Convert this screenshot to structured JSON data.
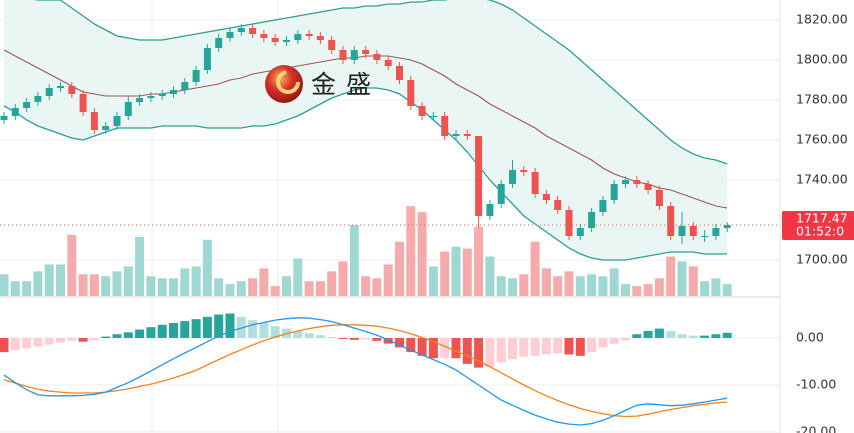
{
  "chart_data": [
    {
      "type": "candlestick",
      "ylim": [
        1682,
        1830
      ],
      "yticks": [
        {
          "value": 1820,
          "label": "1820.00"
        },
        {
          "value": 1800,
          "label": "1800.00"
        },
        {
          "value": 1780,
          "label": "1780.00"
        },
        {
          "value": 1760,
          "label": "1760.00"
        },
        {
          "value": 1740,
          "label": "1740.00"
        },
        {
          "value": 1700,
          "label": "1700.00"
        }
      ],
      "grid": true,
      "up_color": "#26a69a",
      "down_color": "#ef5350",
      "open": [
        1770,
        1772,
        1776,
        1779,
        1782,
        1786,
        1787,
        1783,
        1774,
        1765,
        1767,
        1772,
        1779,
        1781,
        1782,
        1783,
        1785,
        1789,
        1795,
        1806,
        1811,
        1814,
        1816,
        1813,
        1811,
        1809,
        1810,
        1813,
        1812,
        1810,
        1805,
        1800,
        1805,
        1803,
        1800,
        1797,
        1790,
        1777,
        1772,
        1772,
        1762,
        1763,
        1762,
        1722,
        1728,
        1738,
        1745,
        1744,
        1733,
        1730,
        1725,
        1712,
        1716,
        1724,
        1730,
        1738,
        1740,
        1738,
        1735,
        1727,
        1712,
        1717,
        1712,
        1712,
        1716
      ],
      "high": [
        1774,
        1778,
        1781,
        1784,
        1788,
        1789,
        1789,
        1785,
        1776,
        1769,
        1774,
        1782,
        1783,
        1784,
        1785,
        1787,
        1791,
        1797,
        1808,
        1813,
        1816,
        1818,
        1818,
        1815,
        1813,
        1812,
        1815,
        1815,
        1814,
        1812,
        1807,
        1807,
        1807,
        1805,
        1802,
        1799,
        1792,
        1779,
        1774,
        1774,
        1765,
        1765,
        1762,
        1730,
        1740,
        1750,
        1747,
        1746,
        1735,
        1732,
        1727,
        1718,
        1726,
        1732,
        1740,
        1742,
        1742,
        1740,
        1737,
        1729,
        1724,
        1719,
        1715,
        1718,
        1719
      ],
      "low": [
        1768,
        1770,
        1774,
        1777,
        1780,
        1784,
        1781,
        1772,
        1763,
        1763,
        1765,
        1770,
        1777,
        1779,
        1780,
        1781,
        1783,
        1787,
        1793,
        1804,
        1809,
        1812,
        1811,
        1809,
        1807,
        1807,
        1808,
        1810,
        1808,
        1803,
        1798,
        1798,
        1801,
        1798,
        1795,
        1788,
        1775,
        1770,
        1770,
        1760,
        1760,
        1760,
        1716,
        1720,
        1726,
        1736,
        1742,
        1731,
        1728,
        1723,
        1710,
        1710,
        1714,
        1722,
        1728,
        1736,
        1736,
        1733,
        1725,
        1710,
        1708,
        1710,
        1709,
        1710,
        1714
      ],
      "close": [
        1772,
        1776,
        1779,
        1782,
        1786,
        1787,
        1783,
        1774,
        1765,
        1767,
        1772,
        1779,
        1781,
        1782,
        1783,
        1785,
        1789,
        1795,
        1806,
        1811,
        1814,
        1816,
        1813,
        1811,
        1809,
        1810,
        1813,
        1812,
        1810,
        1805,
        1800,
        1805,
        1803,
        1800,
        1797,
        1790,
        1777,
        1772,
        1772,
        1762,
        1763,
        1762,
        1722,
        1728,
        1738,
        1745,
        1744,
        1733,
        1730,
        1725,
        1712,
        1716,
        1724,
        1730,
        1738,
        1740,
        1738,
        1735,
        1727,
        1712,
        1717,
        1712,
        1712,
        1716,
        1717.47
      ],
      "bollinger": {
        "upper": [
          1832,
          1832,
          1831,
          1830,
          1830,
          1830,
          1826,
          1822,
          1818,
          1815,
          1812,
          1811,
          1810,
          1810,
          1810,
          1811,
          1812,
          1813,
          1814,
          1815,
          1816,
          1817,
          1818,
          1819,
          1820,
          1821,
          1822,
          1823,
          1824,
          1825,
          1826,
          1826,
          1827,
          1827,
          1828,
          1828,
          1829,
          1829,
          1830,
          1830,
          1831,
          1831,
          1831,
          1830,
          1828,
          1825,
          1821,
          1817,
          1813,
          1809,
          1805,
          1800,
          1795,
          1790,
          1785,
          1780,
          1775,
          1770,
          1765,
          1760,
          1756,
          1753,
          1751,
          1750,
          1748
        ],
        "middle": [
          1805,
          1802,
          1799,
          1796,
          1793,
          1790,
          1787,
          1784,
          1783,
          1782,
          1782,
          1782,
          1782,
          1783,
          1783,
          1784,
          1785,
          1786,
          1787,
          1788,
          1790,
          1791,
          1793,
          1794,
          1795,
          1796,
          1797,
          1798,
          1799,
          1800,
          1801,
          1801,
          1802,
          1802,
          1802,
          1801,
          1800,
          1798,
          1795,
          1792,
          1788,
          1785,
          1782,
          1778,
          1775,
          1772,
          1769,
          1766,
          1762,
          1759,
          1756,
          1753,
          1750,
          1746,
          1743,
          1741,
          1739,
          1738,
          1736,
          1735,
          1733,
          1731,
          1729,
          1727,
          1726
        ],
        "lower": [
          1777,
          1774,
          1770,
          1767,
          1765,
          1763,
          1761,
          1760,
          1762,
          1764,
          1766,
          1766,
          1766,
          1766,
          1767,
          1767,
          1767,
          1767,
          1766,
          1766,
          1766,
          1766,
          1767,
          1767,
          1768,
          1770,
          1772,
          1775,
          1778,
          1781,
          1783,
          1785,
          1786,
          1786,
          1785,
          1783,
          1779,
          1775,
          1770,
          1765,
          1760,
          1754,
          1747,
          1740,
          1734,
          1728,
          1722,
          1718,
          1714,
          1710,
          1706,
          1703,
          1701,
          1700,
          1700,
          1700,
          1701,
          1702,
          1703,
          1704,
          1704,
          1704,
          1703,
          1703,
          1703
        ],
        "band_color": "#2e9e94",
        "middle_color": "#a0564c",
        "fill": "#e9f6f4"
      },
      "volume": {
        "ylim": [
          0,
          300
        ],
        "up_color": "#9fd8d2",
        "down_color": "#f5abab",
        "values": [
          22,
          15,
          15,
          25,
          32,
          32,
          62,
          22,
          22,
          20,
          25,
          30,
          60,
          20,
          18,
          18,
          28,
          30,
          57,
          18,
          12,
          15,
          18,
          28,
          10,
          20,
          38,
          15,
          15,
          25,
          35,
          72,
          20,
          18,
          32,
          55,
          91,
          85,
          30,
          45,
          50,
          48,
          70,
          40,
          20,
          18,
          22,
          55,
          28,
          20,
          25,
          20,
          22,
          20,
          28,
          12,
          10,
          12,
          18,
          40,
          35,
          30,
          15,
          18,
          12
        ]
      },
      "last_price": 1717.47,
      "countdown": "01:52:0",
      "watermark": "金盛"
    },
    {
      "type": "macd",
      "ylim": [
        -20.2,
        8.5
      ],
      "yticks": [
        {
          "value": 0,
          "label": "0.00"
        },
        {
          "value": -10,
          "label": "-10.00"
        },
        {
          "value": -20,
          "label": "-20.00"
        }
      ],
      "histogram": [
        -3,
        -2.6,
        -2.2,
        -1.8,
        -1.4,
        -1,
        -0.6,
        -0.8,
        -0.5,
        0.3,
        0.8,
        1.2,
        1.8,
        2.3,
        2.8,
        3.2,
        3.6,
        4,
        4.5,
        5,
        5.2,
        4.5,
        3.8,
        3.2,
        2.5,
        2,
        1.5,
        1,
        0.6,
        0.2,
        -0.2,
        -0.4,
        -0.3,
        -0.6,
        -1.2,
        -2,
        -3,
        -3.8,
        -4.3,
        -4.2,
        -4.3,
        -5.5,
        -6.3,
        -6.2,
        -5.2,
        -4.5,
        -4,
        -3.8,
        -3.5,
        -3.3,
        -3.5,
        -3.8,
        -3,
        -2,
        -1.2,
        -0.5,
        0.8,
        1.5,
        2,
        1.5,
        0.8,
        0.5,
        0.5,
        0.8,
        1.1
      ],
      "colors": {
        "up_strong": "#26a69a",
        "up_weak": "#b2dfdb",
        "down_strong": "#ef5350",
        "down_weak": "#ffcdd2"
      },
      "dif": {
        "color": "#2196f3",
        "values": [
          -7.9,
          -9.5,
          -11,
          -12.1,
          -12.3,
          -12.3,
          -12.3,
          -12.2,
          -12,
          -11.5,
          -10.5,
          -9.5,
          -8.3,
          -7,
          -5.7,
          -4.4,
          -3.2,
          -2,
          -0.8,
          0.4,
          1.4,
          2.1,
          2.8,
          3.3,
          3.8,
          4.1,
          4.3,
          4.2,
          3.9,
          3.5,
          2.8,
          2.1,
          1.4,
          0.6,
          -0.4,
          -1.5,
          -2.6,
          -3.6,
          -4.6,
          -5.6,
          -6.8,
          -8.4,
          -10,
          -11.6,
          -13.2,
          -14.3,
          -15.4,
          -16.4,
          -17.2,
          -17.9,
          -18.3,
          -18.5,
          -18.2,
          -17.5,
          -16.5,
          -15.4,
          -14.3,
          -14,
          -14.2,
          -14.4,
          -14.3,
          -14,
          -13.6,
          -13.2,
          -12.8
        ]
      },
      "dea": {
        "color": "#f5821f",
        "values": [
          -8.9,
          -9.6,
          -10.3,
          -10.9,
          -11.3,
          -11.5,
          -11.7,
          -11.7,
          -11.7,
          -11.5,
          -11.2,
          -10.8,
          -10.3,
          -9.8,
          -9.2,
          -8.5,
          -7.7,
          -6.9,
          -5.7,
          -4.6,
          -3.5,
          -2.5,
          -1.5,
          -0.6,
          0.2,
          0.9,
          1.5,
          2,
          2.4,
          2.7,
          2.8,
          2.8,
          2.7,
          2.5,
          2.1,
          1.6,
          0.9,
          0.1,
          -0.8,
          -1.8,
          -2.8,
          -3.8,
          -4.9,
          -6.1,
          -7.4,
          -8.7,
          -10,
          -11.2,
          -12.3,
          -13.3,
          -14.2,
          -15,
          -15.6,
          -16.1,
          -16.5,
          -16.7,
          -16.6,
          -16.2,
          -15.7,
          -15.2,
          -14.8,
          -14.4,
          -14.1,
          -13.8,
          -13.6
        ]
      }
    }
  ]
}
